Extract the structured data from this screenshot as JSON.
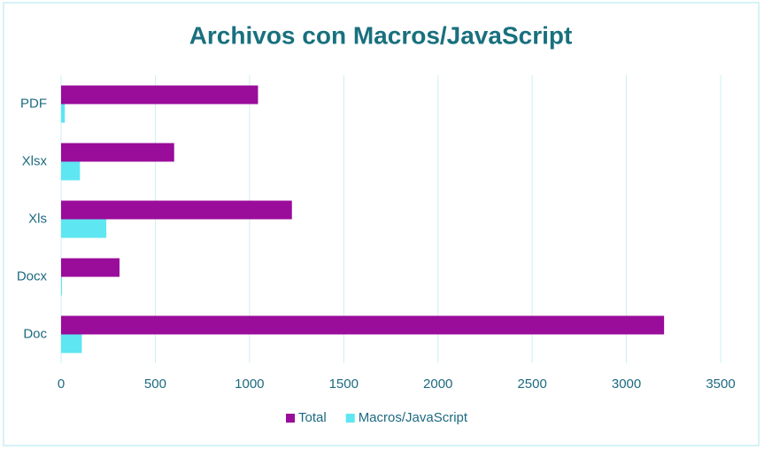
{
  "chart_data": {
    "type": "hbar",
    "title": "Archivos con Macros/JavaScript",
    "categories": [
      "PDF",
      "Xlsx",
      "Xls",
      "Docx",
      "Doc"
    ],
    "series": [
      {
        "name": "Total",
        "color": "#9a0c9a",
        "values": [
          1045,
          600,
          1225,
          310,
          3200
        ]
      },
      {
        "name": "Macros/JavaScript",
        "color": "#5ee6f2",
        "values": [
          20,
          100,
          240,
          5,
          110
        ]
      }
    ],
    "xlim": [
      0,
      3500
    ],
    "xticks": [
      0,
      500,
      1000,
      1500,
      2000,
      2500,
      3000,
      3500
    ],
    "grid": true,
    "legend": "bottom"
  }
}
